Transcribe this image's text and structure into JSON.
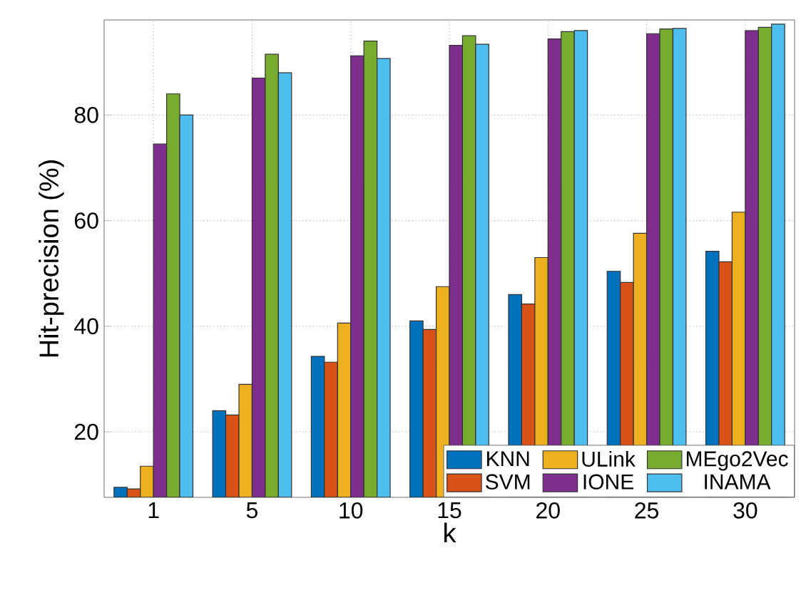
{
  "chart_data": {
    "type": "bar",
    "xlabel": "k",
    "ylabel": "Hit-precision (%)",
    "categories": [
      "1",
      "5",
      "10",
      "15",
      "20",
      "25",
      "30"
    ],
    "ylim": [
      7.6,
      98
    ],
    "yticks": [
      20,
      40,
      60,
      80
    ],
    "grid": true,
    "legend": "bottom right",
    "series": [
      {
        "name": "KNN",
        "color": "#0072bd",
        "values": [
          9.5,
          24,
          34.3,
          41,
          46,
          50.4,
          54.2
        ]
      },
      {
        "name": "SVM",
        "color": "#d95319",
        "values": [
          9.2,
          23.2,
          33.2,
          39.4,
          44.2,
          48.3,
          52.2
        ]
      },
      {
        "name": "ULink",
        "color": "#edb120",
        "values": [
          13.5,
          29,
          40.6,
          47.5,
          53,
          57.6,
          61.6
        ]
      },
      {
        "name": "IONE",
        "color": "#7e2f8e",
        "values": [
          74.5,
          87,
          91.2,
          93.2,
          94.4,
          95.4,
          96
        ]
      },
      {
        "name": "MEgo2Vec",
        "color": "#77ac30",
        "values": [
          84,
          91.5,
          94,
          95,
          95.8,
          96.3,
          96.6
        ]
      },
      {
        "name": "INAMA",
        "color": "#4dbeee",
        "values": [
          80,
          88,
          90.7,
          93.4,
          96,
          96.4,
          97.2
        ]
      }
    ]
  }
}
